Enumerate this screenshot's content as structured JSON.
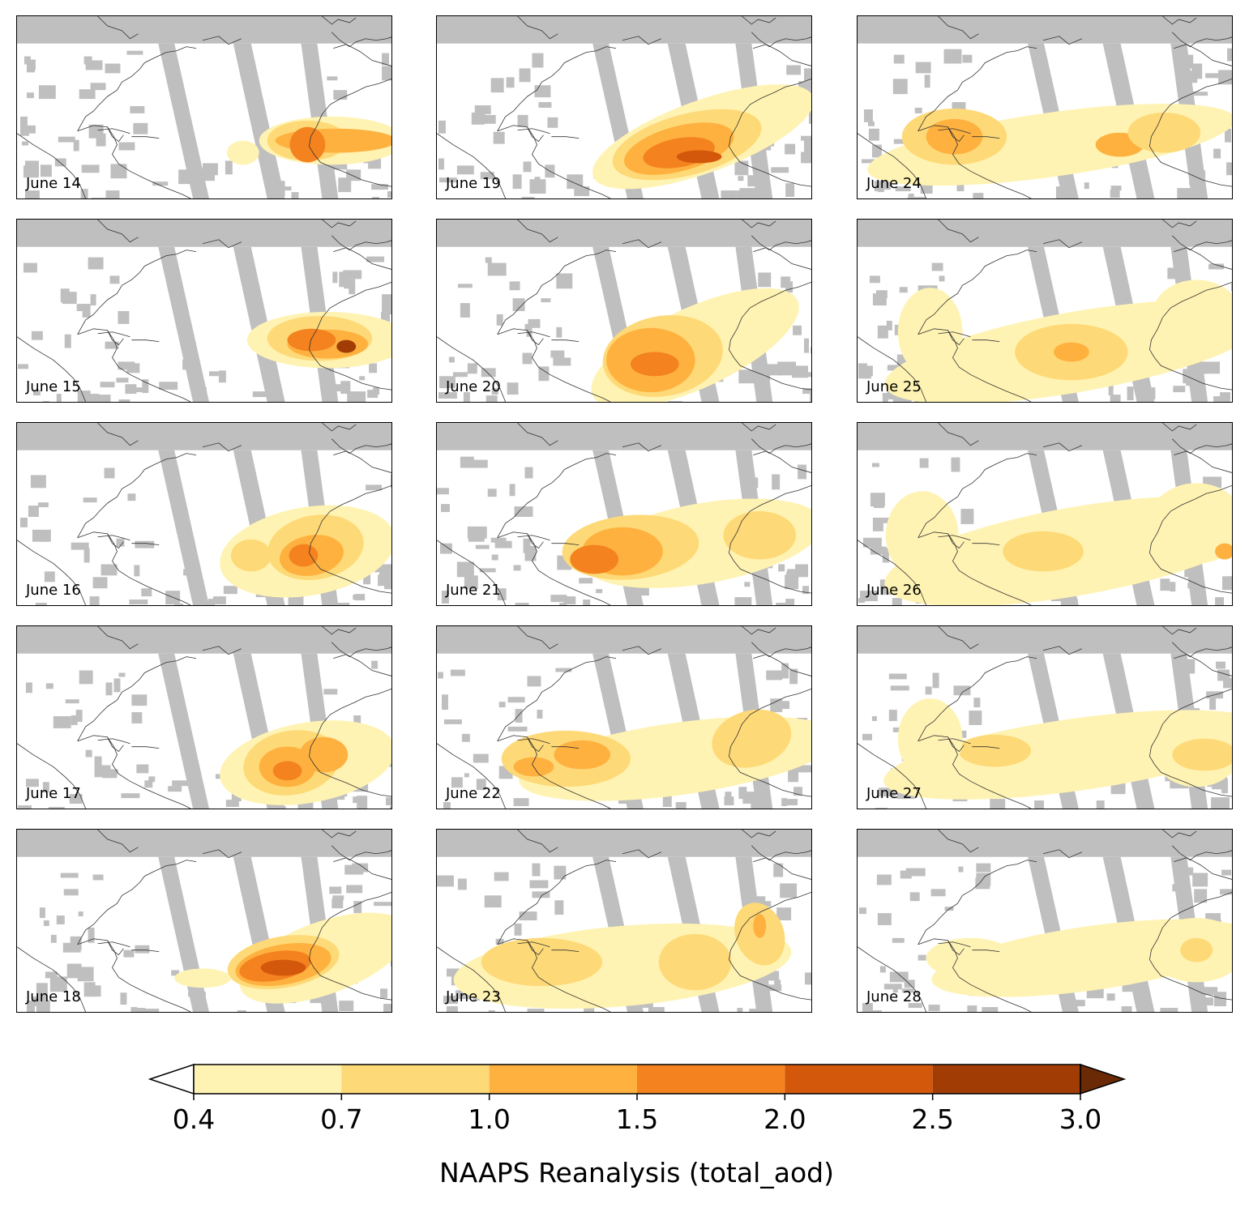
{
  "colors": {
    "no_data": "#bfbfbf",
    "coast": "#333333",
    "levels": [
      "#fff3b3",
      "#fed977",
      "#feb13f",
      "#f3821f",
      "#d4580b",
      "#a23c05",
      "#6a2a05"
    ]
  },
  "panels": [
    {
      "id": "june-14",
      "label": "June 14",
      "col": 0,
      "row": 0
    },
    {
      "id": "june-15",
      "label": "June 15",
      "col": 0,
      "row": 1
    },
    {
      "id": "june-16",
      "label": "June 16",
      "col": 0,
      "row": 2
    },
    {
      "id": "june-17",
      "label": "June 17",
      "col": 0,
      "row": 3
    },
    {
      "id": "june-18",
      "label": "June 18",
      "col": 0,
      "row": 4
    },
    {
      "id": "june-19",
      "label": "June 19",
      "col": 1,
      "row": 0
    },
    {
      "id": "june-20",
      "label": "June 20",
      "col": 1,
      "row": 1
    },
    {
      "id": "june-21",
      "label": "June 21",
      "col": 1,
      "row": 2
    },
    {
      "id": "june-22",
      "label": "June 22",
      "col": 1,
      "row": 3
    },
    {
      "id": "june-23",
      "label": "June 23",
      "col": 1,
      "row": 4
    },
    {
      "id": "june-24",
      "label": "June 24",
      "col": 2,
      "row": 0
    },
    {
      "id": "june-25",
      "label": "June 25",
      "col": 2,
      "row": 1
    },
    {
      "id": "june-26",
      "label": "June 26",
      "col": 2,
      "row": 2
    },
    {
      "id": "june-27",
      "label": "June 27",
      "col": 2,
      "row": 3
    },
    {
      "id": "june-28",
      "label": "June 28",
      "col": 2,
      "row": 4
    }
  ],
  "colorbar": {
    "ticks": [
      "0.4",
      "0.7",
      "1.0",
      "1.5",
      "2.0",
      "2.5",
      "3.0"
    ],
    "title": "NAAPS Reanalysis (total_aod)",
    "extend": "both"
  }
}
